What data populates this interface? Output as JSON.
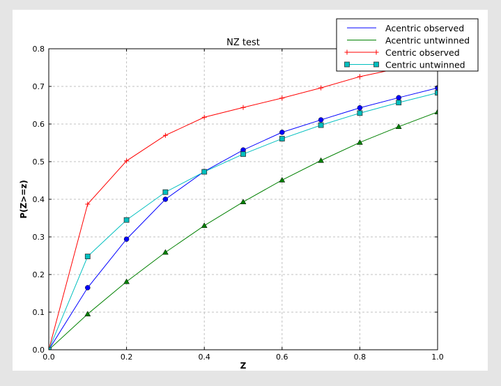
{
  "chart_data": {
    "type": "line",
    "title": "NZ test",
    "xlabel": "Z",
    "ylabel": "P(Z>=z)",
    "xlim": [
      0.0,
      1.0
    ],
    "ylim": [
      0.0,
      0.8
    ],
    "xticks": [
      "0.0",
      "0.2",
      "0.4",
      "0.6",
      "0.8",
      "1.0"
    ],
    "yticks": [
      "0.0",
      "0.1",
      "0.2",
      "0.3",
      "0.4",
      "0.5",
      "0.6",
      "0.7",
      "0.8"
    ],
    "grid": true,
    "legend_position": "top-right",
    "x": [
      0.0,
      0.1,
      0.2,
      0.3,
      0.4,
      0.5,
      0.6,
      0.7,
      0.8,
      0.9,
      1.0
    ],
    "series": [
      {
        "name": "Acentric observed",
        "color": "#0000ff",
        "marker": "circle",
        "values": [
          0.0,
          0.165,
          0.294,
          0.4,
          0.474,
          0.531,
          0.578,
          0.611,
          0.643,
          0.67,
          0.696
        ]
      },
      {
        "name": "Acentric untwinned",
        "color": "#008000",
        "marker": "triangle",
        "values": [
          0.0,
          0.095,
          0.181,
          0.259,
          0.33,
          0.393,
          0.451,
          0.503,
          0.551,
          0.593,
          0.632
        ]
      },
      {
        "name": "Centric observed",
        "color": "#ff0000",
        "marker": "plus",
        "values": [
          0.0,
          0.387,
          0.502,
          0.57,
          0.618,
          0.644,
          0.669,
          0.696,
          0.726,
          0.748,
          0.77
        ]
      },
      {
        "name": "Centric untwinned",
        "color": "#00bfbf",
        "marker": "square",
        "values": [
          0.0,
          0.248,
          0.345,
          0.419,
          0.473,
          0.52,
          0.561,
          0.597,
          0.629,
          0.657,
          0.683
        ]
      }
    ]
  }
}
